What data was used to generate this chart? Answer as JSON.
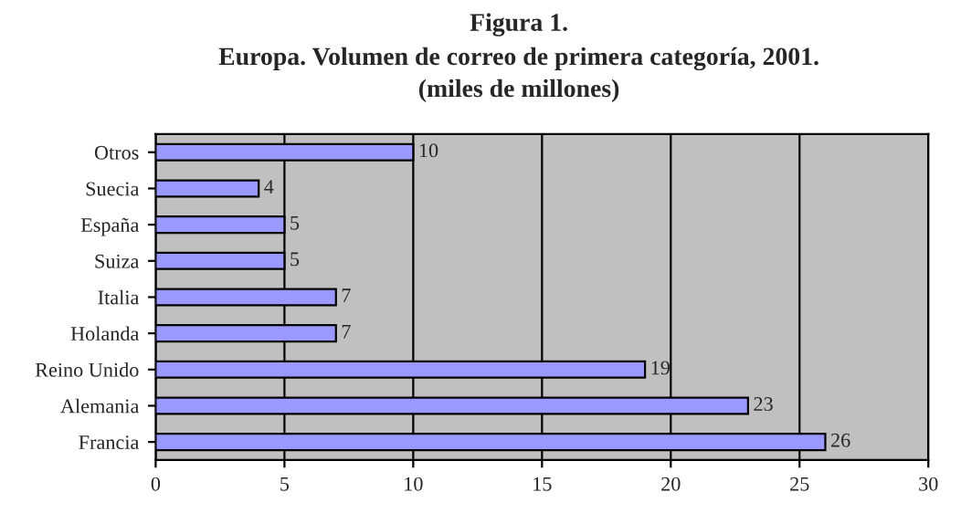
{
  "chart_data": {
    "type": "bar",
    "orientation": "horizontal",
    "title": "Figura 1.",
    "subtitle": "Europa. Volumen de correo de primera categoría, 2001.\n(miles de millones)",
    "categories": [
      "Otros",
      "Suecia",
      "España",
      "Suiza",
      "Italia",
      "Holanda",
      "Reino Unido",
      "Alemania",
      "Francia"
    ],
    "values": [
      10,
      4,
      5,
      5,
      7,
      7,
      19,
      23,
      26
    ],
    "color": "#9999ff",
    "xlim": [
      0,
      30
    ],
    "xticks": [
      0,
      5,
      10,
      15,
      20,
      25,
      30
    ],
    "grid": "x",
    "data_labels": true
  }
}
